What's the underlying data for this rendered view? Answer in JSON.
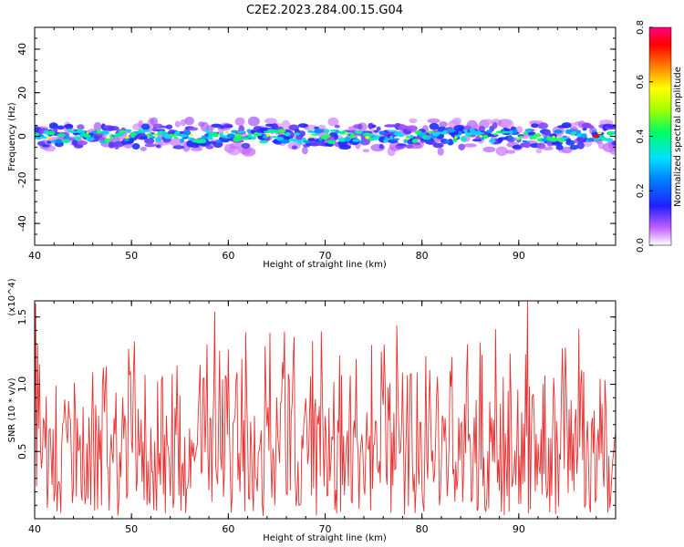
{
  "figure_title": "C2E2.2023.284.00.15.G04",
  "chart_data": [
    {
      "type": "heatmap",
      "panel": "spectrogram",
      "xlabel": "Height of straight line (km)",
      "ylabel": "Frequency (Hz)",
      "xlim": [
        40,
        100
      ],
      "ylim": [
        -50,
        50
      ],
      "xticks": [
        40,
        50,
        60,
        70,
        80,
        90
      ],
      "yticks": [
        -40,
        -20,
        0,
        20,
        40
      ],
      "band_center_hz": 0,
      "band_halfwidth_hz": 6,
      "peak_amplitude_x": 98,
      "colorbar": {
        "label": "Normalized spectral amplitude",
        "range": [
          0.0,
          0.8
        ],
        "ticks": [
          0.0,
          0.2,
          0.4,
          0.6,
          0.8
        ],
        "colormap": [
          "#ffffff",
          "#b040ff",
          "#2020ff",
          "#00e0ff",
          "#00ff60",
          "#a0ff00",
          "#ffff00",
          "#ff8000",
          "#ff0000",
          "#ff0080"
        ]
      }
    },
    {
      "type": "line",
      "panel": "snr",
      "xlabel": "Height of straight line (km)",
      "ylabel": "SNR (10 * v/v)",
      "y_multiplier": "(x10^4)",
      "xlim": [
        40,
        100
      ],
      "ylim": [
        0,
        1.62
      ],
      "xticks": [
        40,
        50,
        60,
        70,
        80,
        90
      ],
      "yticks": [
        0.5,
        1.0,
        1.5
      ],
      "color": "#e83030",
      "x_step": 0.1,
      "y_mean": 0.55,
      "y_range": [
        0.02,
        1.62
      ]
    }
  ]
}
